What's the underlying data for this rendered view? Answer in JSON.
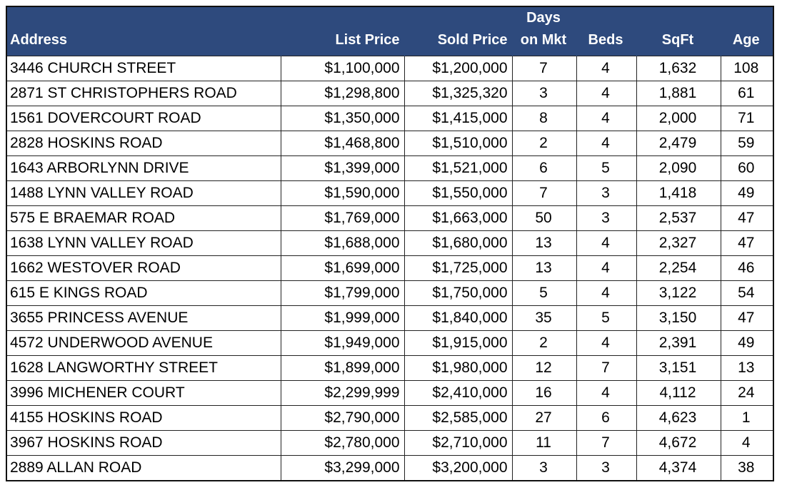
{
  "table": {
    "headers": [
      "Address",
      "List Price",
      "Sold Price",
      [
        "Days",
        "on Mkt"
      ],
      "Beds",
      "SqFt",
      "Age"
    ],
    "rows": [
      [
        "3446 CHURCH STREET",
        "$1,100,000",
        "$1,200,000",
        "7",
        "4",
        "1,632",
        "108"
      ],
      [
        "2871 ST CHRISTOPHERS ROAD",
        "$1,298,800",
        "$1,325,320",
        "3",
        "4",
        "1,881",
        "61"
      ],
      [
        "1561 DOVERCOURT ROAD",
        "$1,350,000",
        "$1,415,000",
        "8",
        "4",
        "2,000",
        "71"
      ],
      [
        "2828 HOSKINS ROAD",
        "$1,468,800",
        "$1,510,000",
        "2",
        "4",
        "2,479",
        "59"
      ],
      [
        "1643 ARBORLYNN DRIVE",
        "$1,399,000",
        "$1,521,000",
        "6",
        "5",
        "2,090",
        "60"
      ],
      [
        "1488 LYNN VALLEY ROAD",
        "$1,590,000",
        "$1,550,000",
        "7",
        "3",
        "1,418",
        "49"
      ],
      [
        "575 E BRAEMAR ROAD",
        "$1,769,000",
        "$1,663,000",
        "50",
        "3",
        "2,537",
        "47"
      ],
      [
        "1638 LYNN VALLEY ROAD",
        "$1,688,000",
        "$1,680,000",
        "13",
        "4",
        "2,327",
        "47"
      ],
      [
        "1662 WESTOVER ROAD",
        "$1,699,000",
        "$1,725,000",
        "13",
        "4",
        "2,254",
        "46"
      ],
      [
        "615 E KINGS ROAD",
        "$1,799,000",
        "$1,750,000",
        "5",
        "4",
        "3,122",
        "54"
      ],
      [
        "3655 PRINCESS AVENUE",
        "$1,999,000",
        "$1,840,000",
        "35",
        "5",
        "3,150",
        "47"
      ],
      [
        "4572 UNDERWOOD AVENUE",
        "$1,949,000",
        "$1,915,000",
        "2",
        "4",
        "2,391",
        "49"
      ],
      [
        "1628 LANGWORTHY STREET",
        "$1,899,000",
        "$1,980,000",
        "12",
        "7",
        "3,151",
        "13"
      ],
      [
        "3996 MICHENER COURT",
        "$2,299,999",
        "$2,410,000",
        "16",
        "4",
        "4,112",
        "24"
      ],
      [
        "4155 HOSKINS ROAD",
        "$2,790,000",
        "$2,585,000",
        "27",
        "6",
        "4,623",
        "1"
      ],
      [
        "3967 HOSKINS ROAD",
        "$2,780,000",
        "$2,710,000",
        "11",
        "7",
        "4,672",
        "4"
      ],
      [
        "2889 ALLAN ROAD",
        "$3,299,000",
        "$3,200,000",
        "3",
        "3",
        "4,374",
        "38"
      ]
    ]
  }
}
